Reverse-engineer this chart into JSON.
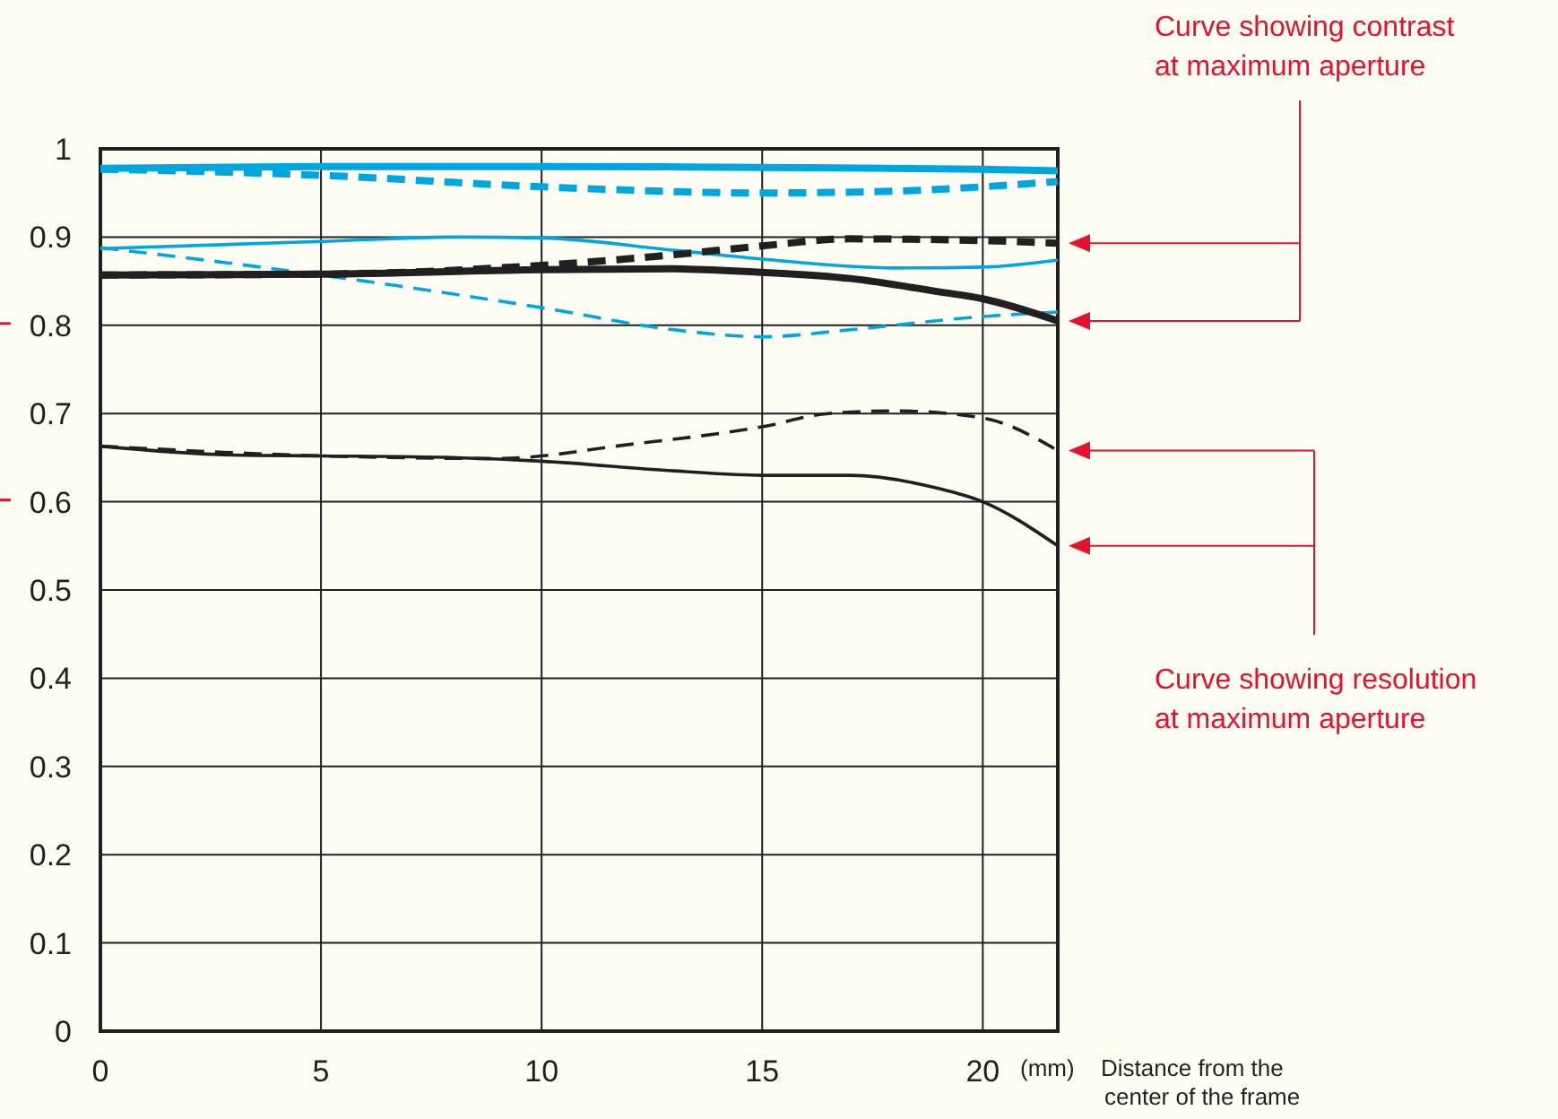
{
  "chart_data": {
    "type": "line",
    "xlabel": "Distance from the center of the frame",
    "xlim": [
      0,
      21.7
    ],
    "ylim": [
      0,
      1
    ],
    "xticks": [
      0,
      5,
      10,
      15,
      20
    ],
    "yticks": [
      0,
      0.1,
      0.2,
      0.3,
      0.4,
      0.5,
      0.6,
      0.7,
      0.8,
      0.9,
      1
    ],
    "grid": true,
    "annotations": [
      "(mm)",
      "Curve showing contrast at maximum aperture",
      "Curve showing resolution at maximum aperture"
    ],
    "series": [
      {
        "color": "#00a6de",
        "line_style": "solid",
        "x": [
          0,
          5,
          10,
          15,
          20,
          21.7
        ],
        "values": [
          0.978,
          0.98,
          0.98,
          0.979,
          0.977,
          0.975
        ]
      },
      {
        "color": "#00a6de",
        "line_style": "dashed",
        "x": [
          0,
          5,
          10,
          15,
          18,
          20,
          21.7
        ],
        "values": [
          0.977,
          0.97,
          0.957,
          0.95,
          0.952,
          0.957,
          0.963
        ]
      },
      {
        "color": "#00a6de",
        "line_style": "solid",
        "x": [
          0,
          5,
          8,
          10,
          13,
          15,
          18,
          20,
          21.7
        ],
        "values": [
          0.887,
          0.895,
          0.9,
          0.899,
          0.885,
          0.875,
          0.865,
          0.866,
          0.874
        ]
      },
      {
        "color": "#00a6de",
        "line_style": "dashed",
        "x": [
          0,
          3,
          6,
          10,
          13,
          15,
          17,
          20,
          21.7
        ],
        "values": [
          0.888,
          0.87,
          0.85,
          0.82,
          0.795,
          0.787,
          0.795,
          0.81,
          0.815
        ]
      },
      {
        "color": "#231f20",
        "line_style": "solid",
        "x": [
          0,
          5,
          10,
          13,
          15,
          17,
          19,
          20,
          21.7
        ],
        "values": [
          0.857,
          0.858,
          0.863,
          0.864,
          0.86,
          0.853,
          0.838,
          0.83,
          0.805
        ]
      },
      {
        "color": "#231f20",
        "line_style": "dashed",
        "x": [
          0,
          5,
          10,
          13,
          15,
          17,
          20,
          21.7
        ],
        "values": [
          0.857,
          0.858,
          0.868,
          0.88,
          0.89,
          0.898,
          0.896,
          0.893
        ]
      },
      {
        "color": "#231f20",
        "line_style": "solid",
        "x": [
          0,
          3,
          5,
          8,
          10,
          13,
          15,
          17,
          19,
          20,
          21.7
        ],
        "values": [
          0.663,
          0.653,
          0.652,
          0.65,
          0.646,
          0.635,
          0.63,
          0.63,
          0.615,
          0.6,
          0.55
        ]
      },
      {
        "color": "#231f20",
        "line_style": "dashed",
        "x": [
          0,
          5,
          9,
          12,
          15,
          16.5,
          18,
          20,
          21.7
        ],
        "values": [
          0.663,
          0.652,
          0.649,
          0.665,
          0.685,
          0.7,
          0.703,
          0.695,
          0.658
        ]
      }
    ]
  }
}
